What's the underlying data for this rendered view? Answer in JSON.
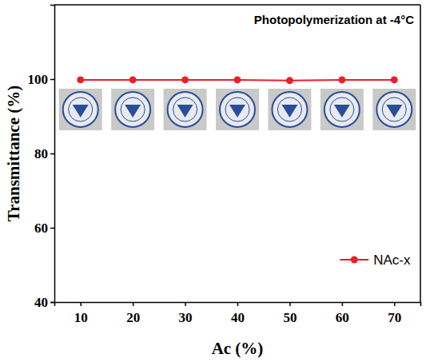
{
  "chart_data": {
    "type": "line",
    "annotations": [
      "Photopolymerization at -4°C"
    ],
    "x_label": "Ac (%)",
    "y_label": "Transmittance (%)",
    "x": [
      10,
      20,
      30,
      40,
      50,
      60,
      70
    ],
    "series": [
      {
        "name": "NAc-x",
        "color": "#e8202a",
        "marker": "circle",
        "line_style": "solid",
        "values": [
          99.8,
          99.8,
          99.8,
          99.8,
          99.6,
          99.8,
          99.8
        ]
      }
    ],
    "xlim": [
      5,
      75
    ],
    "xticks": [
      10,
      20,
      30,
      40,
      50,
      60,
      70
    ],
    "ylim": [
      40,
      120
    ],
    "yticks": [
      40,
      60,
      80,
      100
    ],
    "grid": false,
    "legend": "lower right"
  }
}
